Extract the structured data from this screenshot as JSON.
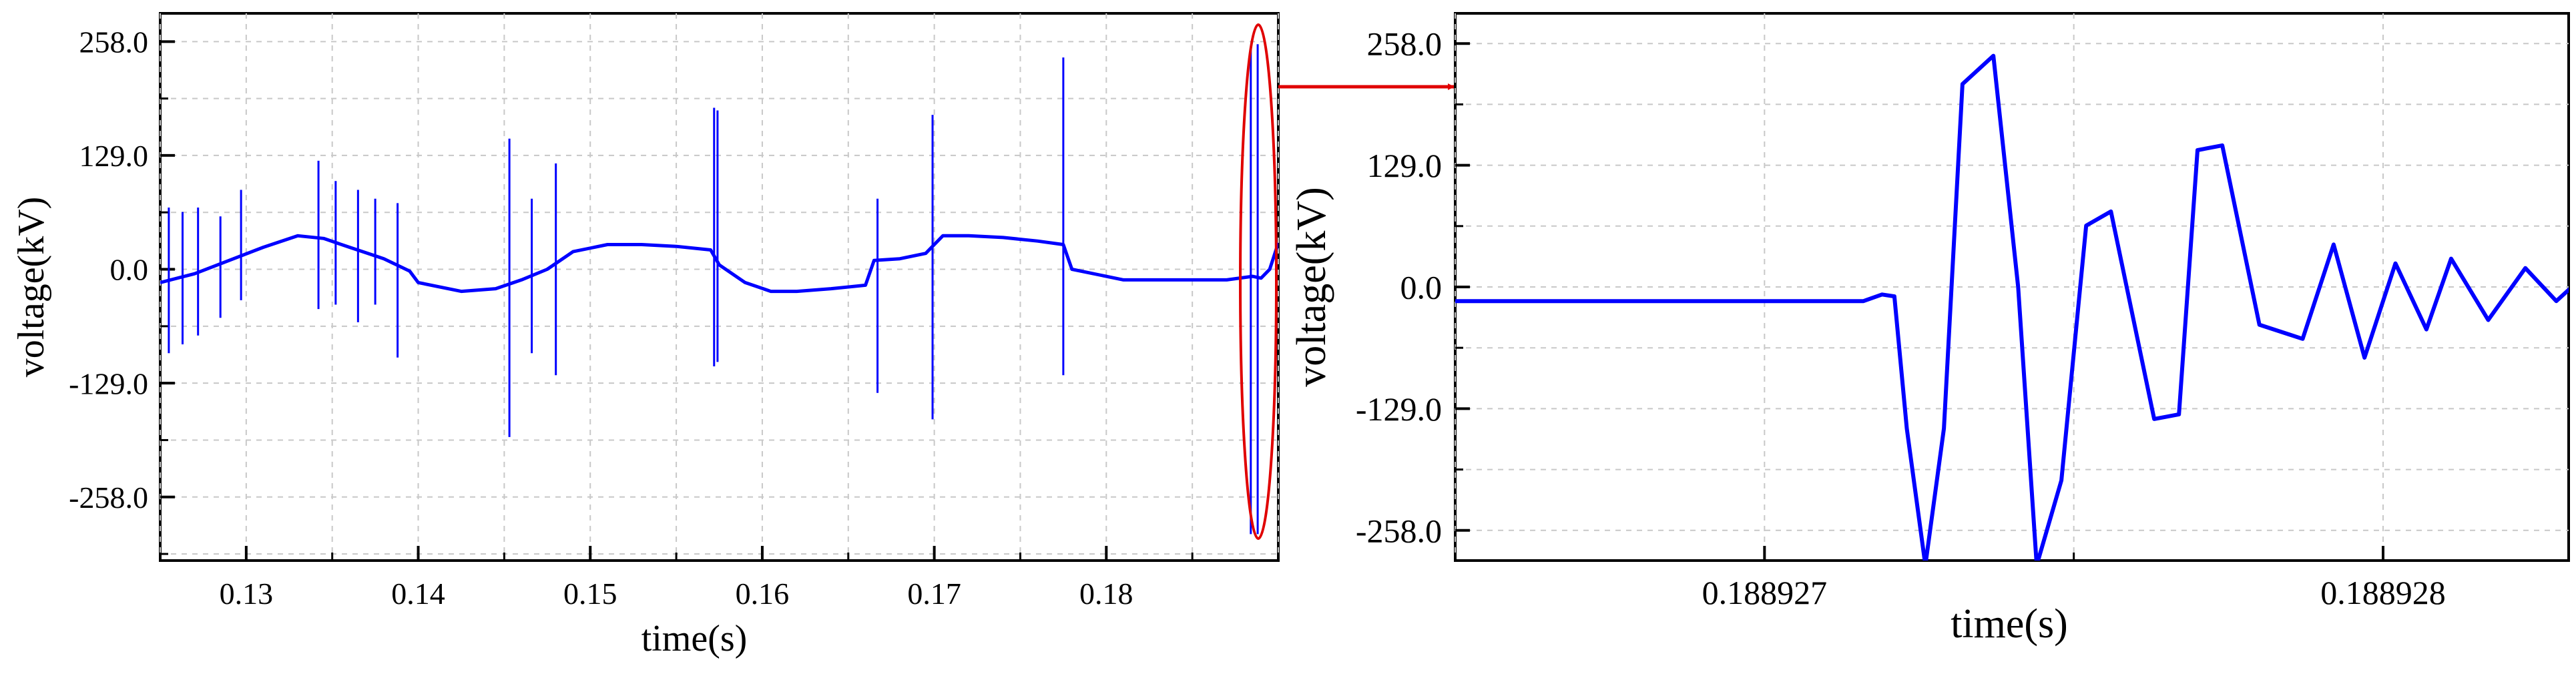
{
  "chart_data": [
    {
      "type": "line",
      "xlabel": "time(s)",
      "ylabel": "voltage(kV)",
      "xlim": [
        0.125,
        0.19
      ],
      "ylim": [
        -330,
        290
      ],
      "xticks": [
        0.13,
        0.14,
        0.15,
        0.16,
        0.17,
        0.18
      ],
      "xtick_labels": [
        "0.13",
        "0.14",
        "0.15",
        "0.16",
        "0.17",
        "0.18"
      ],
      "yticks": [
        258,
        129,
        0,
        -129,
        -258
      ],
      "ytick_labels": [
        "258.0",
        "129.0",
        "0.0",
        "-129.0",
        "-258.0"
      ],
      "grid": true,
      "series": [
        {
          "color": "#0000ff",
          "x": [
            0.125,
            0.127,
            0.129,
            0.131,
            0.133,
            0.1345,
            0.136,
            0.138,
            0.1395,
            0.14,
            0.1425,
            0.1445,
            0.146,
            0.1475,
            0.149,
            0.151,
            0.153,
            0.155,
            0.157,
            0.1575,
            0.159,
            0.1605,
            0.162,
            0.164,
            0.166,
            0.1665,
            0.168,
            0.1695,
            0.1705,
            0.172,
            0.174,
            0.176,
            0.1775,
            0.178,
            0.181,
            0.184,
            0.187,
            0.1885,
            0.189,
            0.1895,
            0.19
          ],
          "y": [
            -15,
            -5,
            10,
            25,
            38,
            35,
            25,
            12,
            -2,
            -15,
            -25,
            -22,
            -12,
            0,
            20,
            28,
            28,
            26,
            22,
            5,
            -15,
            -25,
            -25,
            -22,
            -18,
            10,
            12,
            18,
            38,
            38,
            36,
            32,
            28,
            0,
            -12,
            -12,
            -12,
            -8,
            -10,
            0,
            30
          ],
          "spikes": [
            {
              "x": 0.1255,
              "top": 70,
              "bottom": -95
            },
            {
              "x": 0.1263,
              "top": 65,
              "bottom": -85
            },
            {
              "x": 0.1272,
              "top": 70,
              "bottom": -75
            },
            {
              "x": 0.1285,
              "top": 60,
              "bottom": -55
            },
            {
              "x": 0.1297,
              "top": 90,
              "bottom": -35
            },
            {
              "x": 0.1342,
              "top": 123,
              "bottom": -45
            },
            {
              "x": 0.1352,
              "top": 100,
              "bottom": -40
            },
            {
              "x": 0.1365,
              "top": 90,
              "bottom": -60
            },
            {
              "x": 0.1375,
              "top": 80,
              "bottom": -40
            },
            {
              "x": 0.1388,
              "top": 75,
              "bottom": -100
            },
            {
              "x": 0.1453,
              "top": 148,
              "bottom": -190
            },
            {
              "x": 0.1466,
              "top": 80,
              "bottom": -95
            },
            {
              "x": 0.148,
              "top": 120,
              "bottom": -120
            },
            {
              "x": 0.1572,
              "top": 183,
              "bottom": -110
            },
            {
              "x": 0.1574,
              "top": 180,
              "bottom": -105
            },
            {
              "x": 0.1667,
              "top": 80,
              "bottom": -140
            },
            {
              "x": 0.1699,
              "top": 175,
              "bottom": -170
            },
            {
              "x": 0.1775,
              "top": 240,
              "bottom": -120
            },
            {
              "x": 0.1884,
              "top": 250,
              "bottom": -300
            },
            {
              "x": 0.1888,
              "top": 255,
              "bottom": -300
            }
          ]
        }
      ]
    },
    {
      "type": "line",
      "xlabel": "time(s)",
      "ylabel": "voltage(kV)",
      "xlim": [
        0.1889265,
        0.1889283
      ],
      "ylim": [
        -290,
        290
      ],
      "xticks": [
        0.188927,
        0.188928
      ],
      "xtick_labels": [
        "0.188927",
        "0.188928"
      ],
      "yticks": [
        258,
        129,
        0,
        -129,
        -258
      ],
      "ytick_labels": [
        "258.0",
        "129.0",
        "0.0",
        "-129.0",
        "-258.0"
      ],
      "grid": true,
      "series": [
        {
          "color": "#0000ff",
          "x": [
            0.1889265,
            0.1889271,
            0.18892716,
            0.18892719,
            0.18892721,
            0.18892723,
            0.18892726,
            0.18892729,
            0.18892732,
            0.18892737,
            0.18892741,
            0.18892744,
            0.18892748,
            0.18892752,
            0.18892756,
            0.18892763,
            0.18892767,
            0.1889277,
            0.18892774,
            0.1889278,
            0.18892787,
            0.18892792,
            0.18892797,
            0.18892802,
            0.18892807,
            0.18892811,
            0.18892817,
            0.18892823,
            0.18892828,
            0.18892833
          ],
          "y": [
            -15,
            -15,
            -15,
            -8,
            -10,
            -150,
            -295,
            -150,
            215,
            245,
            0,
            -295,
            -205,
            65,
            80,
            -140,
            -135,
            145,
            150,
            -40,
            -55,
            45,
            -75,
            25,
            -45,
            30,
            -35,
            20,
            -15,
            15
          ]
        }
      ]
    }
  ]
}
